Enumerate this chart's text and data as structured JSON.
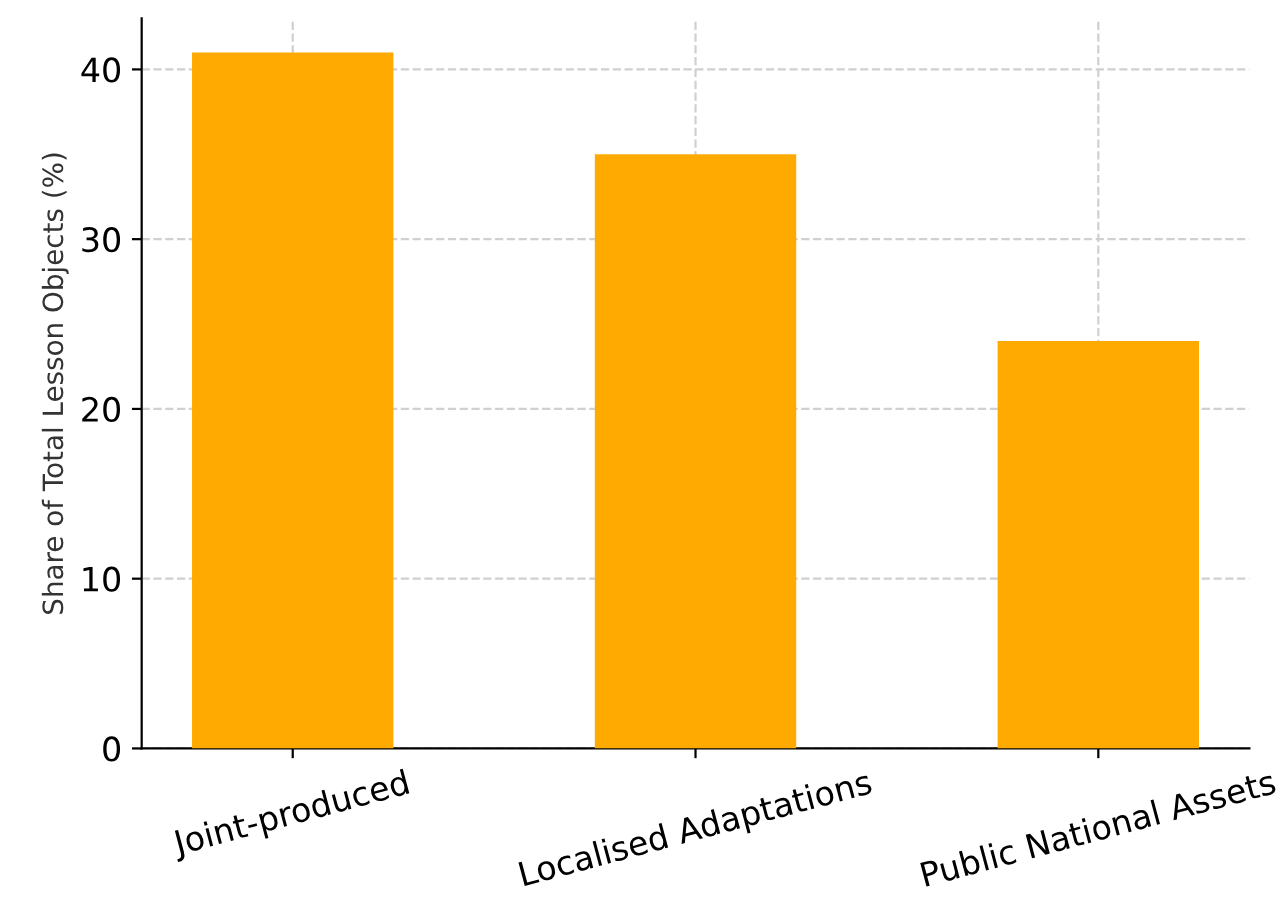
{
  "chart_data": {
    "type": "bar",
    "ylabel": "Share of Total Lesson Objects (%)",
    "categories": [
      "Joint-produced",
      "Localised Adaptations",
      "Public National Assets"
    ],
    "values": [
      41,
      35,
      24
    ],
    "color": "#ffaa00",
    "ylim": [
      0,
      43
    ],
    "yticks": [
      0,
      10,
      20,
      30,
      40
    ],
    "grid": true
  }
}
